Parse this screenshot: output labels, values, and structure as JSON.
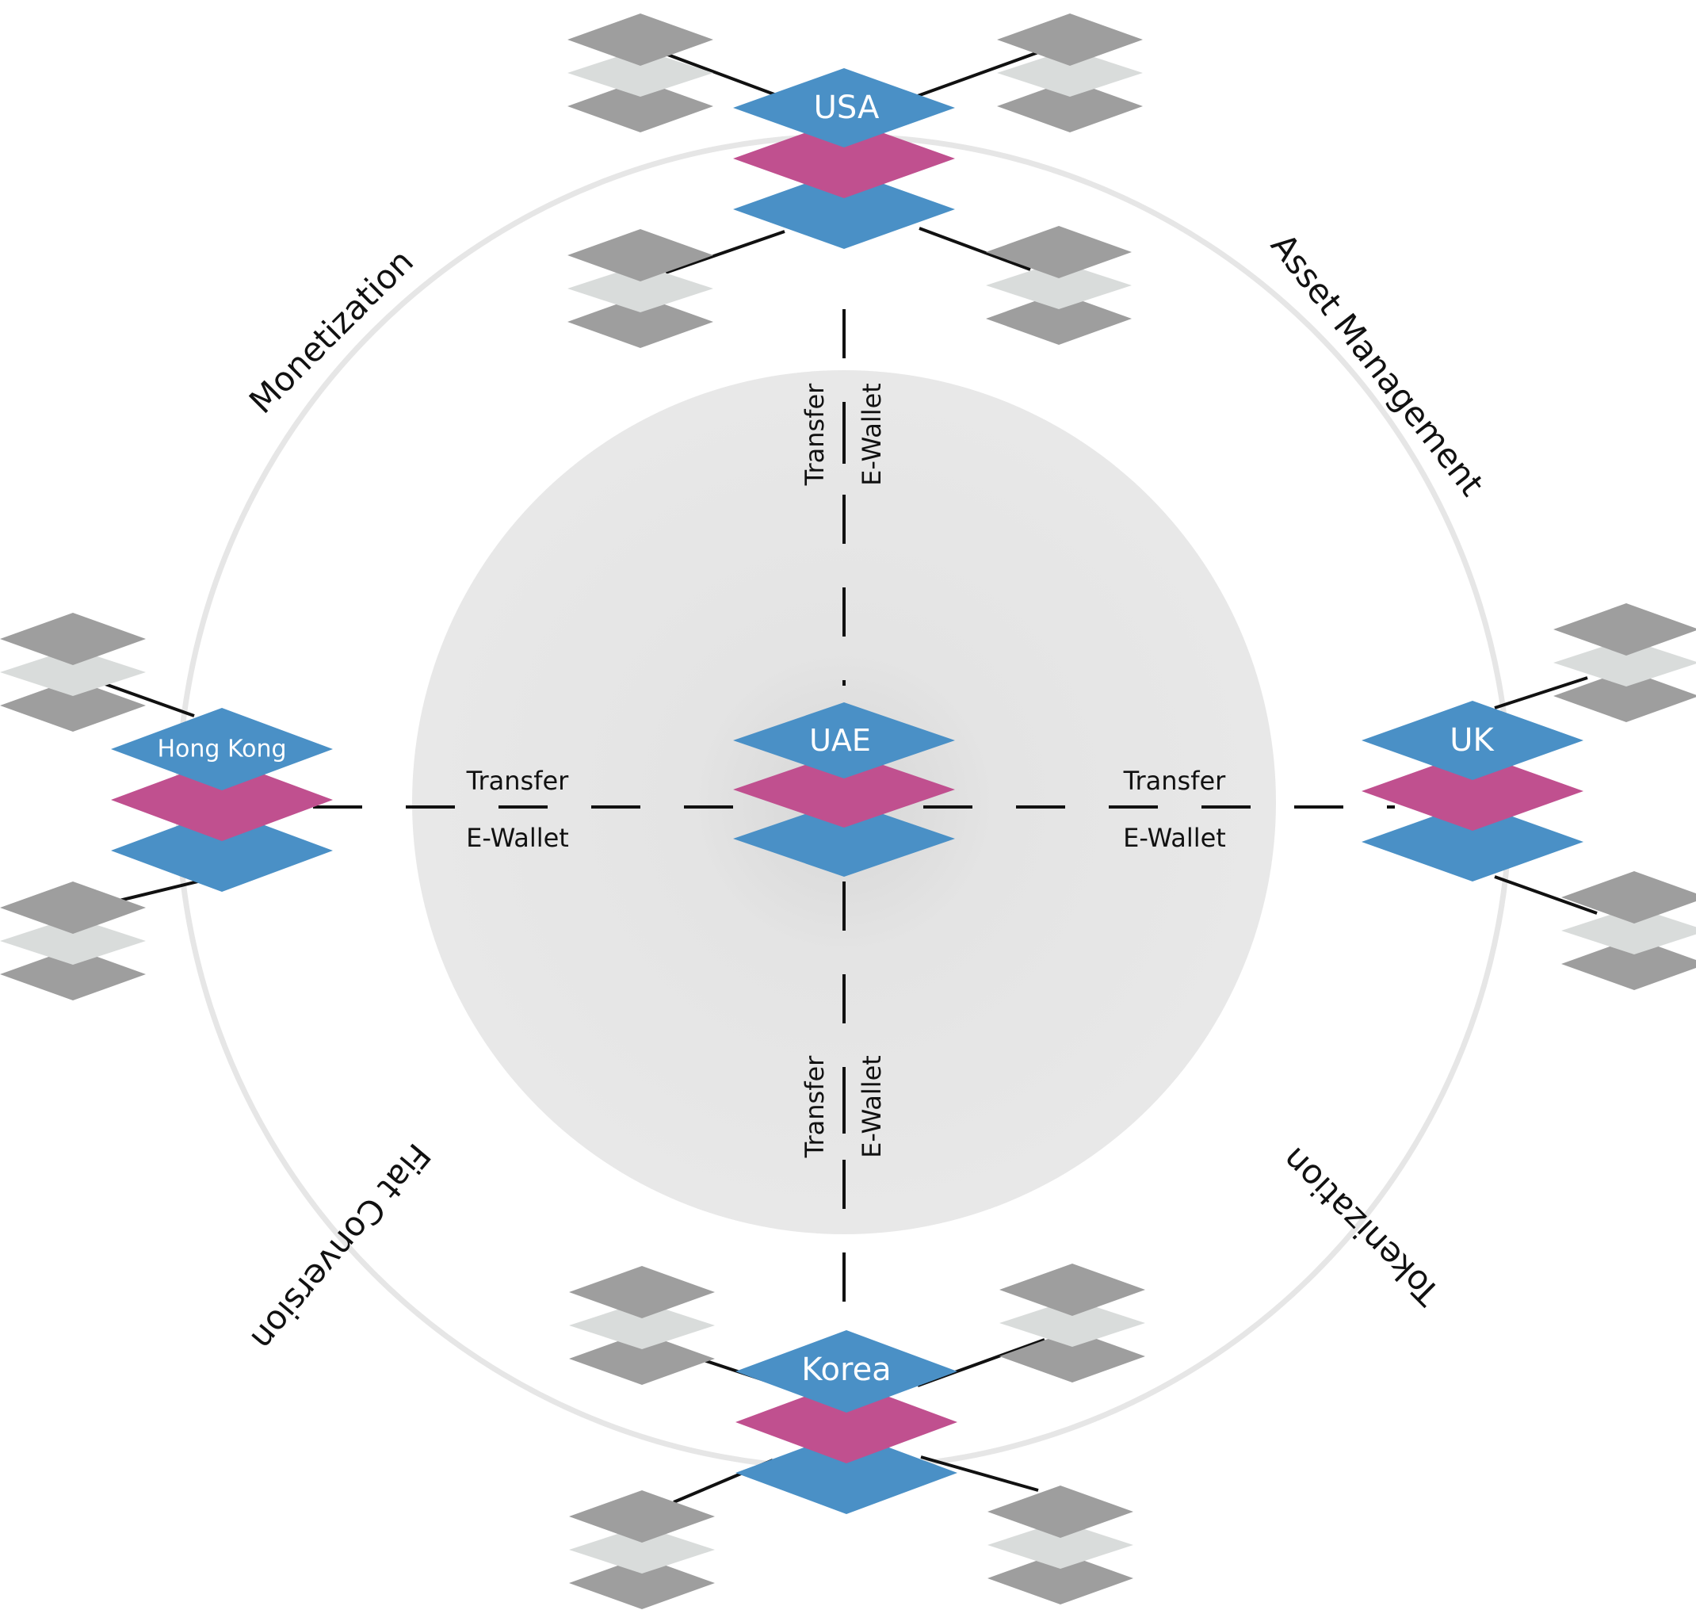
{
  "nodes": {
    "uae": "UAE",
    "usa": "USA",
    "uk": "UK",
    "hong_kong": "Hong Kong",
    "korea": "Korea"
  },
  "links": {
    "top": {
      "a": "Transfer",
      "b": "E-Wallet"
    },
    "bottom": {
      "a": "Transfer",
      "b": "E-Wallet"
    },
    "left": {
      "a": "Transfer",
      "b": "E-Wallet"
    },
    "right": {
      "a": "Transfer",
      "b": "E-Wallet"
    }
  },
  "ring_labels": {
    "monetization": "Monetization",
    "asset_management": "Asset Management",
    "tokenization": "Tokenization",
    "fiat_conversion": "Fiat Conversion"
  },
  "colors": {
    "blue": "#4a90c6",
    "magenta": "#c0508f",
    "gray_dark": "#9e9e9e",
    "gray_light": "#d9dcdb",
    "ring": "#e6e6e6",
    "core": "#e7e7e7",
    "line": "#111111"
  }
}
